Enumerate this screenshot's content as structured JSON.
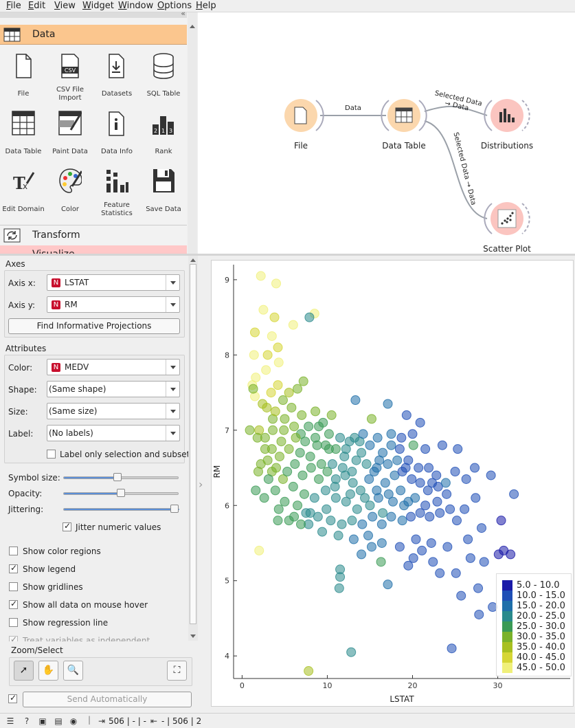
{
  "menu": [
    "File",
    "Edit",
    "View",
    "Widget",
    "Window",
    "Options",
    "Help"
  ],
  "toolbox": {
    "data_category": "Data",
    "transform_category": "Transform",
    "visualize_category": "Visualize",
    "widgets": [
      "File",
      "CSV File Import",
      "Datasets",
      "SQL Table",
      "Data Table",
      "Paint Data",
      "Data Info",
      "Rank",
      "Edit Domain",
      "Color",
      "Feature Statistics",
      "Save Data"
    ]
  },
  "workflow": {
    "nodes": [
      "File",
      "Data Table",
      "Distributions",
      "Scatter Plot"
    ],
    "links": [
      "Data",
      "Selected Data → Data",
      "Selected Data → Data"
    ]
  },
  "controls": {
    "axes_title": "Axes",
    "axis_x_label": "Axis x:",
    "axis_x_value": "LSTAT",
    "axis_y_label": "Axis y:",
    "axis_y_value": "RM",
    "find_projections": "Find Informative Projections",
    "attributes_title": "Attributes",
    "color_label": "Color:",
    "color_value": "MEDV",
    "shape_label": "Shape:",
    "shape_value": "(Same shape)",
    "size_label": "Size:",
    "size_value": "(Same size)",
    "label_label": "Label:",
    "label_value": "(No labels)",
    "label_only_selection": "Label only selection and subset",
    "symbol_size_label": "Symbol size:",
    "opacity_label": "Opacity:",
    "jittering_label": "Jittering:",
    "symbol_size": 0.47,
    "opacity": 0.5,
    "jittering": 1.0,
    "jitter_numeric": "Jitter numeric values",
    "show_color_regions": "Show color regions",
    "show_legend": "Show legend",
    "show_gridlines": "Show gridlines",
    "show_all_data": "Show all data on mouse hover",
    "show_regression": "Show regression line",
    "treat_variables": "Treat variables as independent",
    "zoom_select_title": "Zoom/Select",
    "send_auto": "Send Automatically"
  },
  "status": {
    "input_summary": "506 | - | -",
    "output_summary": "- | 506 | 2"
  },
  "chart_data": {
    "type": "scatter",
    "xlabel": "LSTAT",
    "ylabel": "RM",
    "xticks": [
      0,
      10,
      20,
      30
    ],
    "yticks": [
      4,
      5,
      6,
      7,
      8,
      9
    ],
    "xlim": [
      -1,
      38.5
    ],
    "ylim": [
      3.7,
      9.2
    ],
    "color_variable": "MEDV",
    "legend": [
      "5.0 - 10.0",
      "10.0 - 15.0",
      "15.0 - 20.0",
      "20.0 - 25.0",
      "25.0 - 30.0",
      "30.0 - 35.0",
      "35.0 - 40.0",
      "40.0 - 45.0",
      "45.0 - 50.0"
    ],
    "legend_colors": [
      "#1a1aa8",
      "#1f4fb6",
      "#1f6fa9",
      "#2a8a8c",
      "#3a9a55",
      "#7ab22a",
      "#a8c020",
      "#d6d635",
      "#f0f07a"
    ],
    "points": [
      [
        2.2,
        9.05,
        48
      ],
      [
        4,
        8.95,
        48
      ],
      [
        2.5,
        8.6,
        46
      ],
      [
        3.8,
        8.5,
        44
      ],
      [
        6,
        8.4,
        48
      ],
      [
        8.5,
        8.55,
        48
      ],
      [
        7.9,
        8.5,
        22
      ],
      [
        1.5,
        8.3,
        44
      ],
      [
        3.5,
        8.25,
        45
      ],
      [
        4.2,
        8.1,
        42
      ],
      [
        3,
        8.0,
        40
      ],
      [
        4.3,
        7.9,
        45
      ],
      [
        1.4,
        8.0,
        48
      ],
      [
        2.8,
        7.8,
        48
      ],
      [
        1.6,
        7.7,
        46
      ],
      [
        1.2,
        7.6,
        47
      ],
      [
        1.5,
        7.45,
        48
      ],
      [
        3.4,
        7.5,
        43
      ],
      [
        4.2,
        7.6,
        40
      ],
      [
        5.5,
        7.5,
        36
      ],
      [
        5.8,
        7.3,
        34
      ],
      [
        2.9,
        7.3,
        38
      ],
      [
        3.6,
        7.15,
        33
      ],
      [
        2.0,
        7.0,
        36
      ],
      [
        7.2,
        7.65,
        34
      ],
      [
        6.5,
        7.55,
        30
      ],
      [
        4.8,
        7.4,
        32
      ],
      [
        1.3,
        7.55,
        34
      ],
      [
        8.6,
        7.25,
        30
      ],
      [
        7.0,
        7.2,
        33
      ],
      [
        9.0,
        7.05,
        28
      ],
      [
        10.5,
        7.2,
        30
      ],
      [
        13.3,
        7.4,
        15
      ],
      [
        15.2,
        7.15,
        34
      ],
      [
        17.1,
        7.35,
        16
      ],
      [
        19.3,
        7.2,
        12
      ],
      [
        20.9,
        7.1,
        10
      ],
      [
        0.9,
        7.0,
        30
      ],
      [
        2.7,
        6.9,
        33
      ],
      [
        4.6,
        6.85,
        30
      ],
      [
        6.9,
        6.95,
        28
      ],
      [
        8.8,
        6.8,
        26
      ],
      [
        10.2,
        6.75,
        26
      ],
      [
        12.0,
        6.65,
        24
      ],
      [
        14.0,
        6.7,
        22
      ],
      [
        16.1,
        6.6,
        18
      ],
      [
        17.5,
        6.8,
        15
      ],
      [
        18.5,
        6.75,
        14
      ],
      [
        19.5,
        6.6,
        10
      ],
      [
        20.1,
        6.8,
        25
      ],
      [
        21.5,
        6.75,
        12
      ],
      [
        23.5,
        6.8,
        12
      ],
      [
        25.3,
        6.75,
        10
      ],
      [
        29.2,
        6.4,
        10
      ],
      [
        31.9,
        6.15,
        12
      ],
      [
        27.4,
        6.1,
        10
      ],
      [
        26.1,
        5.95,
        12
      ],
      [
        24.0,
        6.15,
        12
      ],
      [
        23.0,
        6.25,
        13
      ],
      [
        21.8,
        6.2,
        14
      ],
      [
        20.3,
        6.1,
        16
      ],
      [
        19.0,
        6.0,
        18
      ],
      [
        17.7,
        6.05,
        19
      ],
      [
        16.5,
        5.9,
        20
      ],
      [
        15.0,
        6.0,
        20
      ],
      [
        13.5,
        5.95,
        21
      ],
      [
        12.2,
        6.05,
        22
      ],
      [
        11.0,
        6.1,
        22
      ],
      [
        9.8,
        6.2,
        23
      ],
      [
        8.5,
        6.1,
        24
      ],
      [
        7.3,
        6.15,
        26
      ],
      [
        6.0,
        6.25,
        28
      ],
      [
        4.8,
        6.35,
        30
      ],
      [
        3.5,
        6.45,
        30
      ],
      [
        2.2,
        6.55,
        30
      ],
      [
        1.6,
        6.2,
        28
      ],
      [
        2.6,
        6.1,
        27
      ],
      [
        4.3,
        5.95,
        26
      ],
      [
        6.1,
        5.85,
        25
      ],
      [
        7.8,
        5.75,
        22
      ],
      [
        9.4,
        5.65,
        21
      ],
      [
        11.3,
        5.6,
        20
      ],
      [
        13.1,
        5.55,
        19
      ],
      [
        14.8,
        5.6,
        18
      ],
      [
        16.4,
        5.5,
        15
      ],
      [
        18.5,
        5.45,
        13
      ],
      [
        20.4,
        5.55,
        12
      ],
      [
        22.2,
        5.5,
        12
      ],
      [
        24.1,
        5.45,
        14
      ],
      [
        26.5,
        5.55,
        10
      ],
      [
        28.1,
        5.7,
        12
      ],
      [
        30.4,
        5.8,
        9
      ],
      [
        22.4,
        5.25,
        10
      ],
      [
        23.2,
        5.1,
        12
      ],
      [
        25.1,
        5.1,
        10
      ],
      [
        26.8,
        5.3,
        11
      ],
      [
        28.4,
        5.25,
        10
      ],
      [
        30.1,
        5.35,
        9
      ],
      [
        30.7,
        5.4,
        8
      ],
      [
        31.5,
        5.35,
        9
      ],
      [
        27.7,
        4.9,
        10
      ],
      [
        25.7,
        4.8,
        10
      ],
      [
        29.4,
        4.65,
        11
      ],
      [
        27.8,
        4.55,
        10
      ],
      [
        24.6,
        4.1,
        12
      ],
      [
        17.1,
        4.95,
        18
      ],
      [
        11.5,
        5.15,
        20
      ],
      [
        11.5,
        5.05,
        21
      ],
      [
        11.4,
        4.9,
        20
      ],
      [
        12.8,
        4.05,
        22
      ],
      [
        7.8,
        3.8,
        36
      ],
      [
        14.0,
        5.35,
        18
      ],
      [
        15.2,
        5.45,
        17
      ],
      [
        19.5,
        5.2,
        14
      ],
      [
        16.3,
        5.25,
        28
      ],
      [
        20.1,
        5.3,
        13
      ],
      [
        21.1,
        5.4,
        12
      ],
      [
        13.9,
        6.2,
        21
      ],
      [
        14.9,
        6.35,
        19
      ],
      [
        15.5,
        6.45,
        17
      ],
      [
        16.8,
        6.3,
        17
      ],
      [
        17.9,
        6.4,
        16
      ],
      [
        18.8,
        6.45,
        14
      ],
      [
        19.9,
        6.35,
        13
      ],
      [
        20.7,
        6.5,
        12
      ],
      [
        21.9,
        6.5,
        12
      ],
      [
        22.8,
        6.4,
        14
      ],
      [
        23.9,
        6.3,
        15
      ],
      [
        25.0,
        6.45,
        13
      ],
      [
        26.3,
        6.35,
        12
      ],
      [
        27.3,
        6.5,
        11
      ],
      [
        12.1,
        6.4,
        22
      ],
      [
        11.0,
        6.35,
        24
      ],
      [
        10.0,
        6.45,
        25
      ],
      [
        9.0,
        6.35,
        26
      ],
      [
        8.1,
        6.5,
        25
      ],
      [
        7.1,
        6.4,
        27
      ],
      [
        6.2,
        6.55,
        28
      ],
      [
        5.3,
        6.45,
        29
      ],
      [
        4.4,
        6.65,
        30
      ],
      [
        3.5,
        6.75,
        31
      ],
      [
        5.5,
        6.75,
        30
      ],
      [
        6.8,
        6.7,
        29
      ],
      [
        8.0,
        6.65,
        27
      ],
      [
        9.3,
        6.55,
        26
      ],
      [
        10.6,
        6.55,
        24
      ],
      [
        11.8,
        6.5,
        23
      ],
      [
        12.9,
        6.45,
        22
      ],
      [
        13.4,
        6.6,
        21
      ],
      [
        14.6,
        6.55,
        20
      ],
      [
        15.8,
        6.5,
        18
      ],
      [
        17.1,
        6.55,
        17
      ],
      [
        18.2,
        6.6,
        15
      ],
      [
        19.2,
        6.5,
        13
      ],
      [
        16.5,
        6.7,
        16
      ],
      [
        15.0,
        6.8,
        17
      ],
      [
        13.8,
        6.85,
        20
      ],
      [
        12.6,
        6.85,
        22
      ],
      [
        11.5,
        6.9,
        24
      ],
      [
        10.2,
        6.95,
        26
      ],
      [
        9.5,
        7.1,
        27
      ],
      [
        7.8,
        7.05,
        29
      ],
      [
        6.1,
        7.05,
        31
      ],
      [
        5.0,
        7.15,
        33
      ],
      [
        3.9,
        7.25,
        35
      ],
      [
        2.4,
        7.35,
        38
      ],
      [
        3.0,
        6.6,
        30
      ],
      [
        4.0,
        6.5,
        31
      ],
      [
        5.0,
        6.05,
        28
      ],
      [
        6.5,
        6.0,
        26
      ],
      [
        7.5,
        5.9,
        24
      ],
      [
        8.9,
        5.85,
        23
      ],
      [
        10.4,
        5.8,
        22
      ],
      [
        11.7,
        5.75,
        21
      ],
      [
        12.9,
        5.8,
        20
      ],
      [
        14.1,
        5.75,
        19
      ],
      [
        15.3,
        5.85,
        18
      ],
      [
        16.4,
        5.75,
        18
      ],
      [
        17.5,
        5.85,
        16
      ],
      [
        18.8,
        5.8,
        15
      ],
      [
        19.8,
        5.85,
        14
      ],
      [
        20.9,
        5.9,
        13
      ],
      [
        22.0,
        5.85,
        12
      ],
      [
        23.2,
        5.9,
        11
      ],
      [
        24.4,
        5.95,
        12
      ],
      [
        25.2,
        5.8,
        11
      ],
      [
        9.9,
        5.95,
        23
      ],
      [
        8.0,
        5.9,
        24
      ],
      [
        6.9,
        5.75,
        26
      ],
      [
        5.5,
        5.8,
        27
      ],
      [
        4.2,
        5.8,
        28
      ],
      [
        12.7,
        6.15,
        21
      ],
      [
        14.4,
        6.1,
        20
      ],
      [
        16.0,
        6.1,
        19
      ],
      [
        17.2,
        6.15,
        18
      ],
      [
        18.6,
        6.2,
        16
      ],
      [
        20.9,
        6.3,
        14
      ],
      [
        22.3,
        6.3,
        13
      ],
      [
        3.9,
        6.2,
        28
      ],
      [
        3.1,
        6.35,
        29
      ],
      [
        1.9,
        6.45,
        30
      ],
      [
        2.7,
        6.75,
        32
      ],
      [
        1.8,
        6.9,
        33
      ],
      [
        3.6,
        7.0,
        34
      ],
      [
        4.9,
        7.0,
        33
      ],
      [
        6.3,
        6.9,
        31
      ],
      [
        7.4,
        6.85,
        29
      ],
      [
        8.6,
        6.9,
        27
      ],
      [
        9.8,
        6.8,
        26
      ],
      [
        11.0,
        6.75,
        25
      ],
      [
        12.2,
        6.75,
        23
      ],
      [
        13.2,
        6.9,
        21
      ],
      [
        14.2,
        6.95,
        19
      ],
      [
        15.9,
        6.9,
        18
      ],
      [
        17.5,
        6.95,
        16
      ],
      [
        18.7,
        6.9,
        14
      ],
      [
        20.0,
        6.95,
        12
      ],
      [
        2.0,
        5.4,
        46
      ],
      [
        10.9,
        6.25,
        22
      ],
      [
        13.0,
        6.3,
        22
      ],
      [
        15.8,
        6.2,
        19
      ],
      [
        19.5,
        6.05,
        16
      ],
      [
        21.5,
        6.0,
        14
      ],
      [
        22.9,
        6.05,
        13
      ]
    ]
  }
}
